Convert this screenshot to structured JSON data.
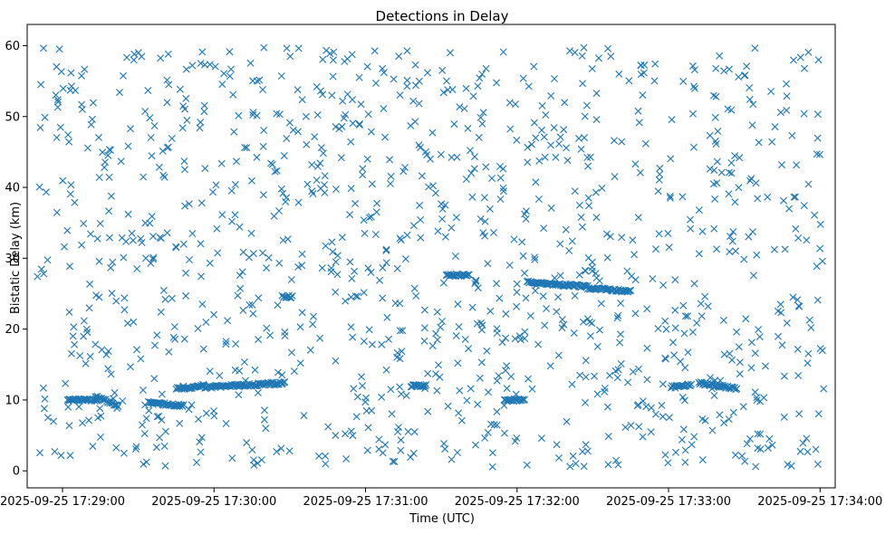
{
  "chart_data": {
    "type": "scatter",
    "title": "Detections in Delay",
    "xlabel": "Time (UTC)",
    "ylabel": "Bistatic Delay (km)",
    "marker": "x",
    "color": "#1f77b4",
    "grid": false,
    "legend": "none",
    "x_unit": "seconds after 2025-09-25 17:28:00 UTC",
    "xlim": [
      46,
      366
    ],
    "ylim": [
      -2.4,
      63
    ],
    "x_ticks": [
      {
        "value": 60,
        "label": "2025-09-25 17:29:00"
      },
      {
        "value": 120,
        "label": "2025-09-25 17:30:00"
      },
      {
        "value": 180,
        "label": "2025-09-25 17:31:00"
      },
      {
        "value": 240,
        "label": "2025-09-25 17:32:00"
      },
      {
        "value": 300,
        "label": "2025-09-25 17:33:00"
      },
      {
        "value": 360,
        "label": "2025-09-25 17:34:00"
      }
    ],
    "y_ticks": [
      {
        "value": 0,
        "label": "0"
      },
      {
        "value": 10,
        "label": "10"
      },
      {
        "value": 20,
        "label": "20"
      },
      {
        "value": 30,
        "label": "30"
      },
      {
        "value": 40,
        "label": "40"
      },
      {
        "value": 50,
        "label": "50"
      },
      {
        "value": 60,
        "label": "60"
      }
    ],
    "time_range": [
      50,
      362
    ],
    "delay_range": [
      0.5,
      59.8
    ],
    "tracks": [
      {
        "t": [
          62,
          74
        ],
        "delay": [
          10,
          10
        ]
      },
      {
        "t": [
          73,
          82
        ],
        "delay": [
          10.5,
          9.2
        ]
      },
      {
        "t": [
          94,
          108
        ],
        "delay": [
          9.6,
          9.2
        ]
      },
      {
        "t": [
          105,
          116
        ],
        "delay": [
          11.6,
          12.0
        ]
      },
      {
        "t": [
          116,
          148
        ],
        "delay": [
          11.8,
          12.4
        ]
      },
      {
        "t": [
          147,
          151
        ],
        "delay": [
          24.6,
          24.6
        ]
      },
      {
        "t": [
          198,
          204
        ],
        "delay": [
          12,
          12
        ]
      },
      {
        "t": [
          212,
          221
        ],
        "delay": [
          27.6,
          27.6
        ]
      },
      {
        "t": [
          235,
          243
        ],
        "delay": [
          10,
          10
        ]
      },
      {
        "t": [
          244,
          268
        ],
        "delay": [
          26.6,
          26
        ]
      },
      {
        "t": [
          268,
          285
        ],
        "delay": [
          25.8,
          25.3
        ]
      },
      {
        "t": [
          301,
          309
        ],
        "delay": [
          11.8,
          12.1
        ]
      },
      {
        "t": [
          312,
          327
        ],
        "delay": [
          12.4,
          11.6
        ]
      }
    ]
  }
}
